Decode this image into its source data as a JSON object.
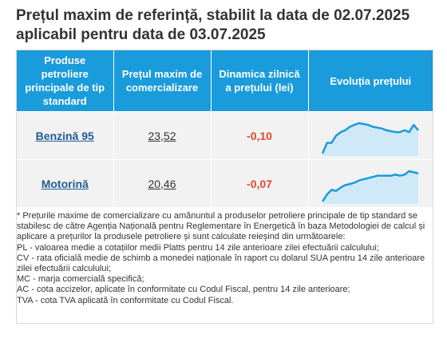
{
  "title": "Prețul maxim de referință, stabilit la data de 02.07.2025 aplicabil pentru data de 03.07.2025",
  "table": {
    "headers": [
      "Produse petroliere principale de tip standard",
      "Prețul maxim de comercializare",
      "Dinamica zilnică a prețului (lei)",
      "Evoluția prețului"
    ],
    "rows": [
      {
        "product": "Benzină 95",
        "price": "23,52",
        "dynamic": "-0,10",
        "trend": [
          22.3,
          22.9,
          22.9,
          23.3,
          23.5,
          23.6,
          23.8,
          23.9,
          24.0,
          23.95,
          23.9,
          23.8,
          23.75,
          23.7,
          23.6,
          23.55,
          23.5,
          23.5,
          23.6,
          23.5,
          23.9,
          23.6
        ]
      },
      {
        "product": "Motorină",
        "price": "20,46",
        "dynamic": "-0,07",
        "trend": [
          19.3,
          19.6,
          19.8,
          19.75,
          19.9,
          20.0,
          20.05,
          20.1,
          20.2,
          20.25,
          20.3,
          20.35,
          20.4,
          20.4,
          20.4,
          20.4,
          20.45,
          20.4,
          20.45,
          20.6,
          20.55,
          20.5
        ]
      }
    ],
    "accent_color": "#1a9bdc",
    "dynamic_color": "#e0492d"
  },
  "notes": [
    "* Prețurile maxime de comercializare cu amănuntul a produselor petroliere principale de tip standard se stabilesc de către Agenția Națională pentru Reglementare în Energetică în baza Metodologiei de calcul și aplicare a prețurilor la produsele petroliere și sunt calculate reieșind din următoarele:",
    "PL - valoarea medie a cotațiilor medii Platts pentru 14 zile anterioare zilei efectuării calculului;",
    "CV - rata oficială medie de schimb a monedei naționale în raport cu dolarul SUA pentru 14 zile anterioare zilei efectuării calculului;",
    "MC - marja comercială specifică;",
    "AC - cota accizelor, aplicate în conformitate cu Codul Fiscal, pentru 14 zile anterioare;",
    "TVA - cota TVA aplicată în conformitate cu Codul Fiscal."
  ]
}
